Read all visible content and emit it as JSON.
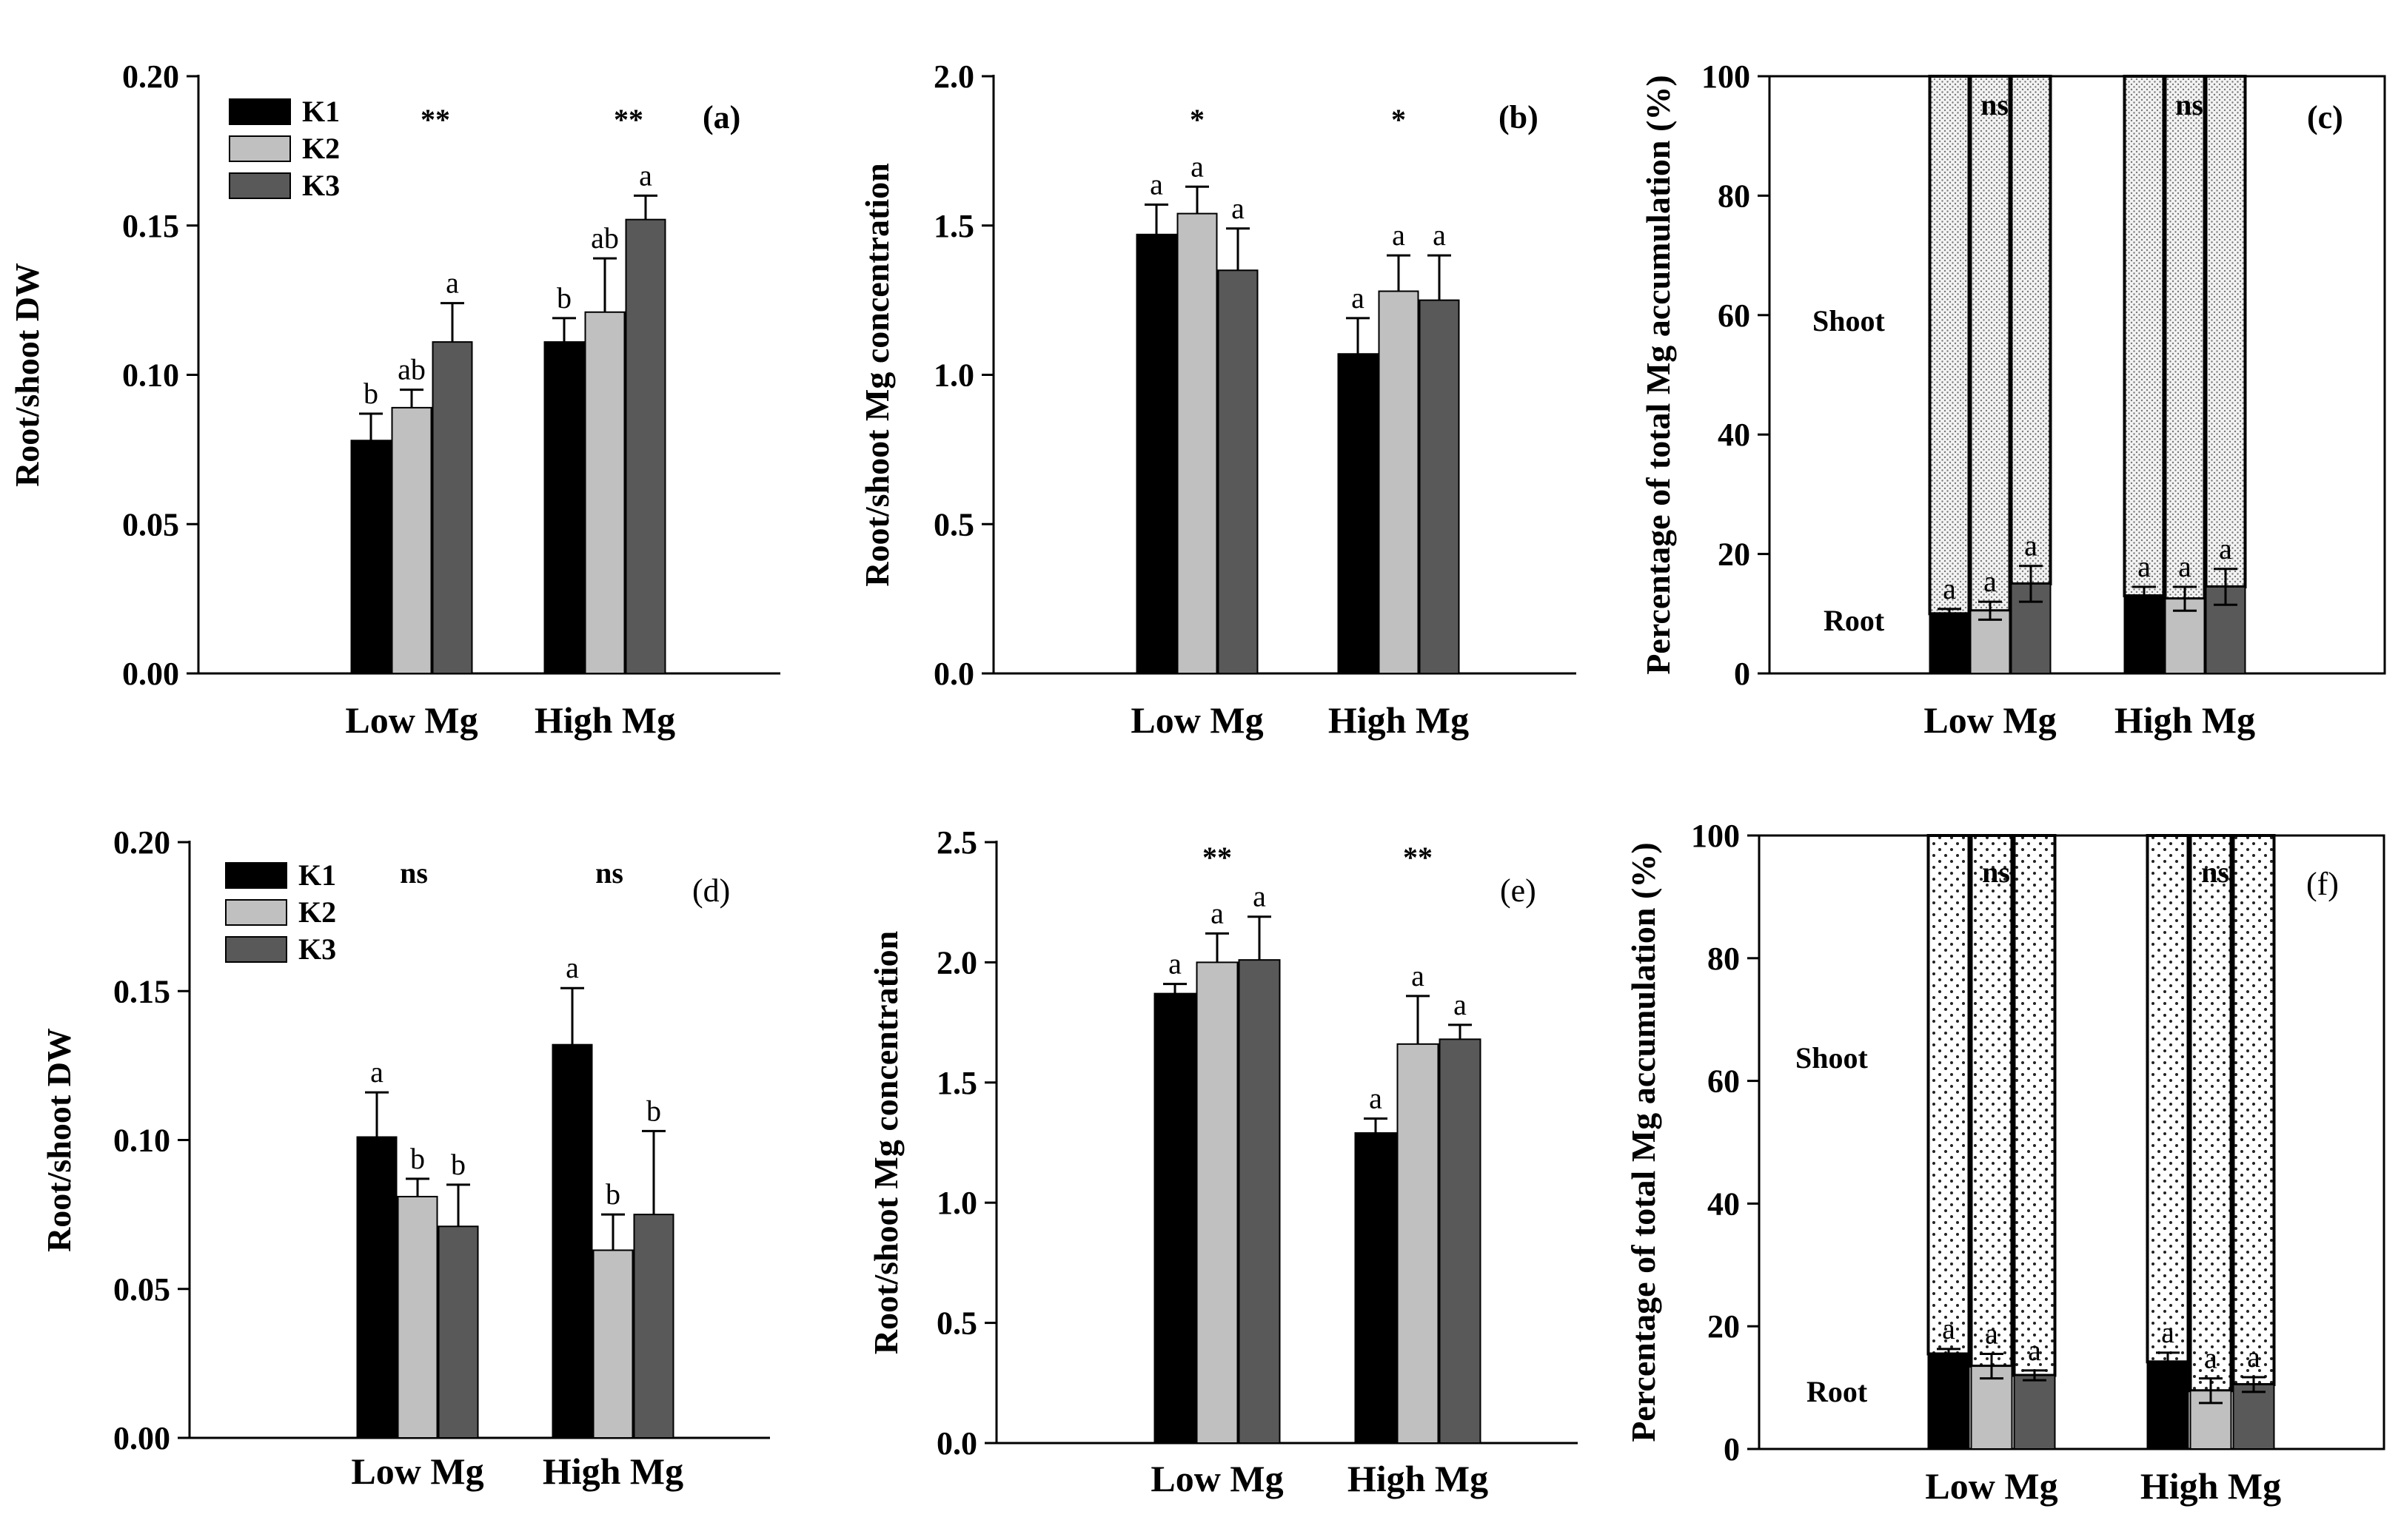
{
  "colors": {
    "K1": "#000000",
    "K2": "#c0c0c0",
    "K3": "#595959",
    "shoot_fill": "#ececec"
  },
  "chart_data": [
    {
      "panel": "(a)",
      "type": "bar",
      "ylabel": "Root/shoot DW",
      "ylim": [
        0,
        0.2
      ],
      "yticks": [
        "0.00",
        "0.05",
        "0.10",
        "0.15",
        "0.20"
      ],
      "categories": [
        "Low Mg",
        "High Mg"
      ],
      "legend": [
        "K1",
        "K2",
        "K3"
      ],
      "series": [
        {
          "name": "K1",
          "values": [
            0.078,
            0.111
          ],
          "errors": [
            0.009,
            0.008
          ],
          "letters": [
            "b",
            "b"
          ]
        },
        {
          "name": "K2",
          "values": [
            0.089,
            0.121
          ],
          "errors": [
            0.006,
            0.018
          ],
          "letters": [
            "ab",
            "ab"
          ]
        },
        {
          "name": "K3",
          "values": [
            0.111,
            0.152
          ],
          "errors": [
            0.013,
            0.008
          ],
          "letters": [
            "a",
            "a"
          ]
        }
      ],
      "significance": [
        "**",
        "**"
      ]
    },
    {
      "panel": "(b)",
      "type": "bar",
      "ylabel": "Root/shoot Mg concentration",
      "ylim": [
        0,
        2.0
      ],
      "yticks": [
        "0.0",
        "0.5",
        "1.0",
        "1.5",
        "2.0"
      ],
      "categories": [
        "Low Mg",
        "High Mg"
      ],
      "series": [
        {
          "name": "K1",
          "values": [
            1.47,
            1.07
          ],
          "errors": [
            0.1,
            0.12
          ],
          "letters": [
            "a",
            "a"
          ]
        },
        {
          "name": "K2",
          "values": [
            1.54,
            1.28
          ],
          "errors": [
            0.09,
            0.12
          ],
          "letters": [
            "a",
            "a"
          ]
        },
        {
          "name": "K3",
          "values": [
            1.35,
            1.25
          ],
          "errors": [
            0.14,
            0.15
          ],
          "letters": [
            "a",
            "a"
          ]
        }
      ],
      "significance": [
        "*",
        "*"
      ]
    },
    {
      "panel": "(c)",
      "type": "bar",
      "stacked": true,
      "ylabel": "Percentage of total Mg accumulation (%)",
      "ylim": [
        0,
        100
      ],
      "yticks": [
        "0",
        "20",
        "40",
        "60",
        "80",
        "100"
      ],
      "categories": [
        "Low Mg",
        "High Mg"
      ],
      "root_label": "Root",
      "shoot_label": "Shoot",
      "series": [
        {
          "name": "K1",
          "values": [
            10,
            13
          ],
          "errors": [
            0.8,
            1.5
          ],
          "letters": [
            "a",
            "a"
          ]
        },
        {
          "name": "K2",
          "values": [
            10.5,
            12.5
          ],
          "errors": [
            1.5,
            2
          ],
          "letters": [
            "a",
            "a"
          ]
        },
        {
          "name": "K3",
          "values": [
            15,
            14.5
          ],
          "errors": [
            3,
            3
          ],
          "letters": [
            "a",
            "a"
          ]
        }
      ],
      "significance": [
        "ns",
        "ns"
      ]
    },
    {
      "panel": "(d)",
      "type": "bar",
      "ylabel": "Root/shoot DW",
      "ylim": [
        0,
        0.2
      ],
      "yticks": [
        "0.00",
        "0.05",
        "0.10",
        "0.15",
        "0.20"
      ],
      "categories": [
        "Low Mg",
        "High Mg"
      ],
      "legend": [
        "K1",
        "K2",
        "K3"
      ],
      "series": [
        {
          "name": "K1",
          "values": [
            0.101,
            0.132
          ],
          "errors": [
            0.015,
            0.019
          ],
          "letters": [
            "a",
            "a"
          ]
        },
        {
          "name": "K2",
          "values": [
            0.081,
            0.063
          ],
          "errors": [
            0.006,
            0.012
          ],
          "letters": [
            "b",
            "b"
          ]
        },
        {
          "name": "K3",
          "values": [
            0.071,
            0.075
          ],
          "errors": [
            0.014,
            0.028
          ],
          "letters": [
            "b",
            "b"
          ]
        }
      ],
      "significance": [
        "ns",
        "ns"
      ]
    },
    {
      "panel": "(e)",
      "type": "bar",
      "ylabel": "Root/shoot Mg concentration",
      "ylim": [
        0,
        2.5
      ],
      "yticks": [
        "0.0",
        "0.5",
        "1.0",
        "1.5",
        "2.0",
        "2.5"
      ],
      "categories": [
        "Low Mg",
        "High Mg"
      ],
      "series": [
        {
          "name": "K1",
          "values": [
            1.87,
            1.29
          ],
          "errors": [
            0.04,
            0.06
          ],
          "letters": [
            "a",
            "a"
          ]
        },
        {
          "name": "K2",
          "values": [
            2.0,
            1.66
          ],
          "errors": [
            0.12,
            0.2
          ],
          "letters": [
            "a",
            "a"
          ]
        },
        {
          "name": "K3",
          "values": [
            2.01,
            1.68
          ],
          "errors": [
            0.18,
            0.06
          ],
          "letters": [
            "a",
            "a"
          ]
        }
      ],
      "significance": [
        "**",
        "**"
      ]
    },
    {
      "panel": "(f)",
      "type": "bar",
      "stacked": true,
      "ylabel": "Percentage of total Mg accumulation (%)",
      "ylim": [
        0,
        100
      ],
      "yticks": [
        "0",
        "20",
        "40",
        "60",
        "80",
        "100"
      ],
      "categories": [
        "Low Mg",
        "High Mg"
      ],
      "root_label": "Root",
      "shoot_label": "Shoot",
      "series": [
        {
          "name": "K1",
          "values": [
            15.5,
            14.2
          ],
          "errors": [
            0.8,
            1.5
          ],
          "letters": [
            "a",
            "a"
          ]
        },
        {
          "name": "K2",
          "values": [
            13.5,
            9.5
          ],
          "errors": [
            2,
            2
          ],
          "letters": [
            "a",
            "a"
          ]
        },
        {
          "name": "K3",
          "values": [
            12,
            10.5
          ],
          "errors": [
            0.8,
            1.2
          ],
          "letters": [
            "a",
            "a"
          ]
        }
      ],
      "significance": [
        "ns",
        "ns"
      ]
    }
  ]
}
